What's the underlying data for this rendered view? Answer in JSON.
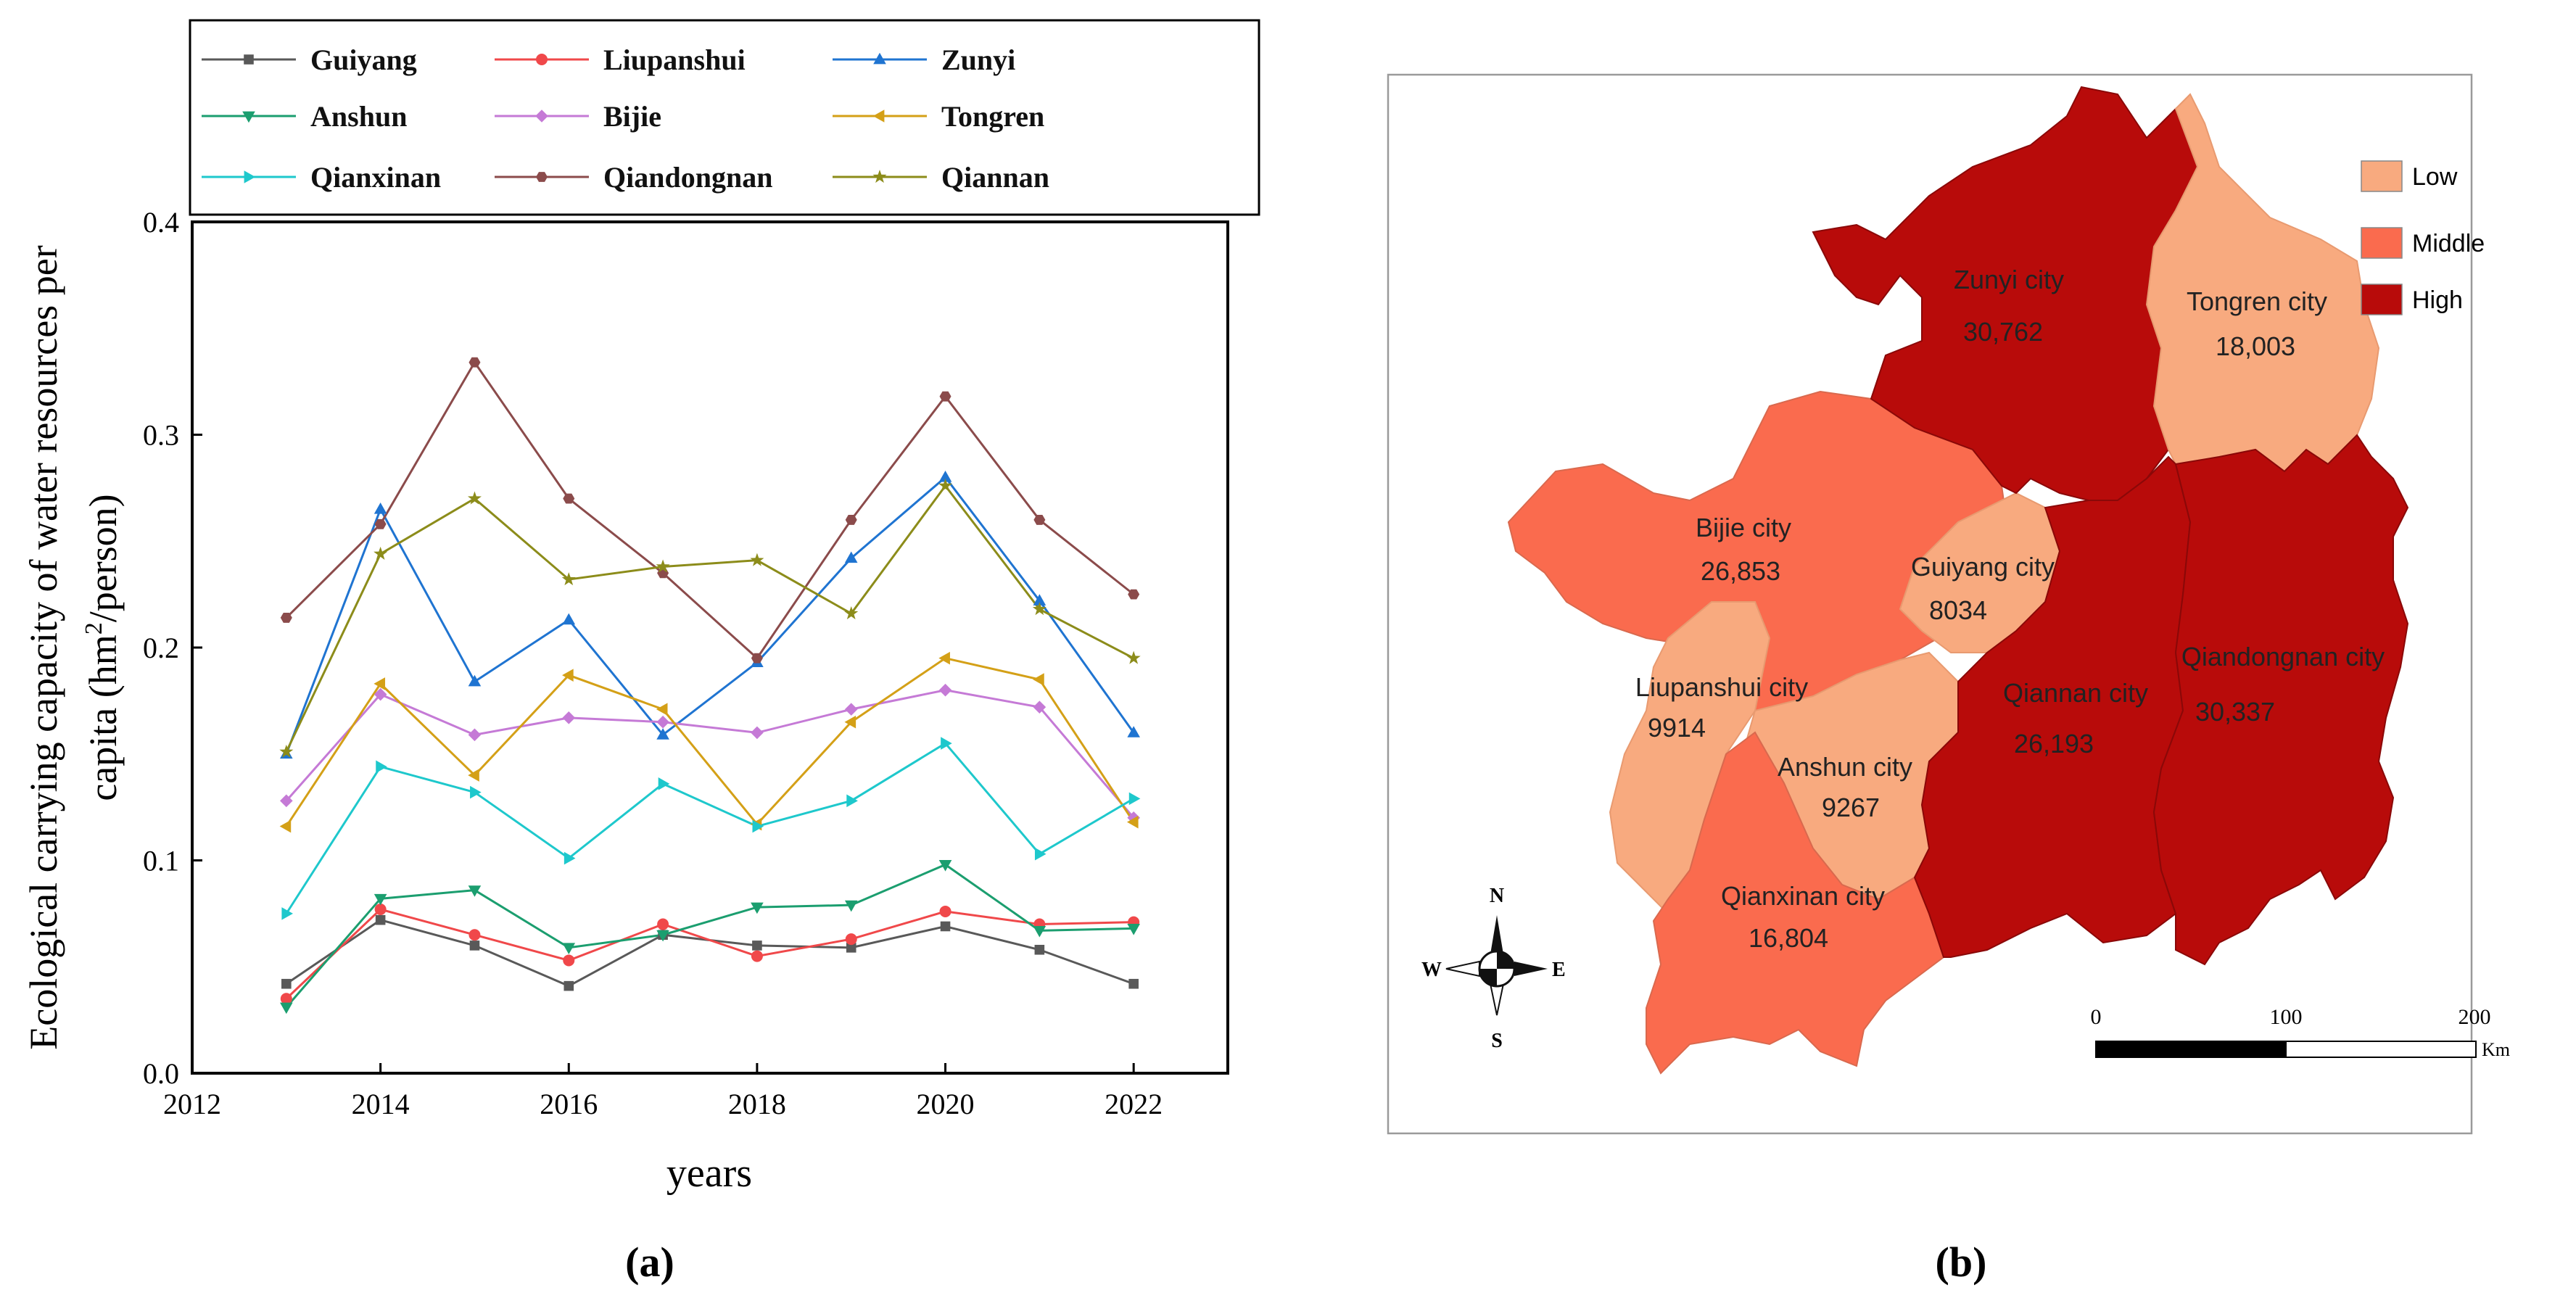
{
  "chart_data": [
    {
      "type": "line",
      "panel_label": "(a)",
      "xlabel": "years",
      "ylabel_line1": "Ecological carrying capacity of water resources per",
      "ylabel_line2_prefix": "capita (hm",
      "ylabel_line2_sup": "2",
      "ylabel_line2_suffix": "/person)",
      "xlim": [
        2012,
        2023
      ],
      "ylim": [
        0,
        0.4
      ],
      "x_ticks": [
        2012,
        2014,
        2016,
        2018,
        2020,
        2022
      ],
      "y_ticks": [
        0.0,
        0.1,
        0.2,
        0.3,
        0.4
      ],
      "x_tick_labels": [
        "2012",
        "2014",
        "2016",
        "2018",
        "2020",
        "2022"
      ],
      "y_tick_labels": [
        "0.0",
        "0.1",
        "0.2",
        "0.3",
        "0.4"
      ],
      "x": [
        2013,
        2014,
        2015,
        2016,
        2017,
        2018,
        2019,
        2020,
        2021,
        2022
      ],
      "series": [
        {
          "name": "Guiyang",
          "color": "#595959",
          "marker": "square",
          "values": [
            0.042,
            0.072,
            0.06,
            0.041,
            0.065,
            0.06,
            0.059,
            0.069,
            0.058,
            0.042
          ]
        },
        {
          "name": "Liupanshui",
          "color": "#f0484a",
          "marker": "circle",
          "values": [
            0.035,
            0.077,
            0.065,
            0.053,
            0.07,
            0.055,
            0.063,
            0.076,
            0.07,
            0.071
          ]
        },
        {
          "name": "Zunyi",
          "color": "#1f74d1",
          "marker": "triangle-up",
          "values": [
            0.15,
            0.265,
            0.184,
            0.213,
            0.159,
            0.193,
            0.242,
            0.28,
            0.222,
            0.16
          ]
        },
        {
          "name": "Anshun",
          "color": "#1b9e6f",
          "marker": "triangle-down",
          "values": [
            0.031,
            0.082,
            0.086,
            0.059,
            0.065,
            0.078,
            0.079,
            0.098,
            0.067,
            0.068
          ]
        },
        {
          "name": "Bijie",
          "color": "#c57ad6",
          "marker": "diamond",
          "values": [
            0.128,
            0.178,
            0.159,
            0.167,
            0.165,
            0.16,
            0.171,
            0.18,
            0.172,
            0.12
          ]
        },
        {
          "name": "Tongren",
          "color": "#d4a017",
          "marker": "triangle-left",
          "values": [
            0.116,
            0.183,
            0.14,
            0.187,
            0.171,
            0.117,
            0.165,
            0.195,
            0.185,
            0.118
          ]
        },
        {
          "name": "Qianxinan",
          "color": "#1ec8cc",
          "marker": "triangle-right",
          "values": [
            0.075,
            0.144,
            0.132,
            0.101,
            0.136,
            0.116,
            0.128,
            0.155,
            0.103,
            0.129
          ]
        },
        {
          "name": "Qiandongnan",
          "color": "#8b4b4b",
          "marker": "hexagon",
          "values": [
            0.214,
            0.258,
            0.334,
            0.27,
            0.235,
            0.195,
            0.26,
            0.318,
            0.26,
            0.225
          ]
        },
        {
          "name": "Qiannan",
          "color": "#8c8c1a",
          "marker": "star",
          "values": [
            0.151,
            0.244,
            0.27,
            0.232,
            0.238,
            0.241,
            0.216,
            0.276,
            0.218,
            0.195
          ]
        }
      ]
    },
    {
      "type": "choropleth-map",
      "panel_label": "(b)",
      "legend": [
        {
          "label": "Low",
          "color": "#f8aa7f"
        },
        {
          "label": "Middle",
          "color": "#fa6b4e"
        },
        {
          "label": "High",
          "color": "#b80b0a"
        }
      ],
      "regions": [
        {
          "name": "Zunyi city",
          "value": "30,762",
          "class": "High"
        },
        {
          "name": "Tongren city",
          "value": "18,003",
          "class": "Low"
        },
        {
          "name": "Bijie city",
          "value": "26,853",
          "class": "Middle"
        },
        {
          "name": "Guiyang city",
          "value": "8034",
          "class": "Low"
        },
        {
          "name": "Liupanshui city",
          "value": "9914",
          "class": "Low"
        },
        {
          "name": "Anshun city",
          "value": "9267",
          "class": "Low"
        },
        {
          "name": "Qiannan city",
          "value": "26,193",
          "class": "High"
        },
        {
          "name": "Qiandongnan city",
          "value": "30,337",
          "class": "High"
        },
        {
          "name": "Qianxinan city",
          "value": "16,804",
          "class": "Middle"
        }
      ],
      "compass": {
        "n": "N",
        "s": "S",
        "e": "E",
        "w": "W"
      },
      "scale_bar": {
        "ticks": [
          "0",
          "100",
          "200"
        ],
        "unit": "Km"
      }
    }
  ]
}
